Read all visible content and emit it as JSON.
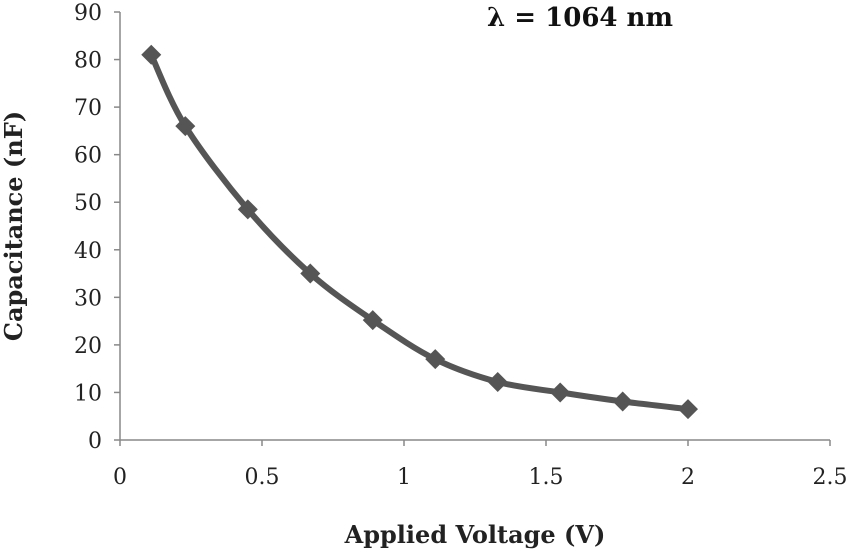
{
  "chart_data": {
    "type": "scatter",
    "title": "",
    "annotation": "λ = 1064 nm",
    "xlabel": "Applied Voltage (V)",
    "ylabel": "Capacitance (nF)",
    "xlim": [
      0,
      2.5
    ],
    "ylim": [
      0,
      90
    ],
    "xticks": [
      0,
      0.5,
      1,
      1.5,
      2,
      2.5
    ],
    "xtick_labels": [
      "0",
      "0.5",
      "1",
      "1.5",
      "2",
      "2.5"
    ],
    "yticks": [
      0,
      10,
      20,
      30,
      40,
      50,
      60,
      70,
      80,
      90
    ],
    "ytick_labels": [
      "0",
      "10",
      "20",
      "30",
      "40",
      "50",
      "60",
      "70",
      "80",
      "90"
    ],
    "grid": false,
    "legend": "none",
    "smooth": true,
    "marker": "diamond",
    "color": "#555555",
    "series": [
      {
        "x": [
          0.11,
          0.23,
          0.45,
          0.67,
          0.89,
          1.11,
          1.33,
          1.55,
          1.77,
          2.0
        ],
        "y": [
          81,
          66,
          48.5,
          35,
          25.2,
          17,
          12.2,
          10,
          8.1,
          6.5
        ]
      }
    ]
  }
}
